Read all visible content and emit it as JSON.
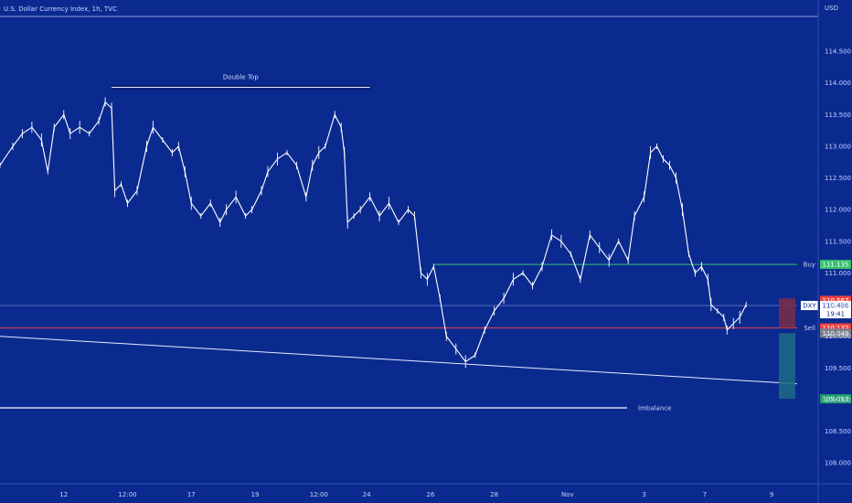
{
  "header": {
    "title": "U.S. Dollar Currency Index, 1h, TVC",
    "currency": "USD"
  },
  "colors": {
    "background": "#0b2a8f",
    "price": "#ffffff",
    "buy": "#38c172",
    "sell": "#ef4444",
    "trend": "#e6ecff",
    "projection_red": "#7c2d4a",
    "projection_green": "#1e6a86"
  },
  "chart_data": {
    "type": "line",
    "title": "U.S. Dollar Currency Index, 1h, TVC",
    "xlabel": "",
    "ylabel": "",
    "ylim": [
      107.7,
      115.05
    ],
    "yticks": [
      108.0,
      108.5,
      109.0,
      109.5,
      110.0,
      110.5,
      111.0,
      111.5,
      112.0,
      112.5,
      113.0,
      113.5,
      114.0,
      114.5
    ],
    "ytick_labels": [
      "108.000",
      "108.500",
      "109.000",
      "109.500",
      "110.000",
      "110.500",
      "111.000",
      "111.500",
      "112.000",
      "112.500",
      "113.000",
      "113.500",
      "114.000",
      "114.500"
    ],
    "xticks": [
      {
        "label": "12",
        "x": 1
      },
      {
        "label": "12:00",
        "x": 3
      },
      {
        "label": "17",
        "x": 5
      },
      {
        "label": "19",
        "x": 7
      },
      {
        "label": "12:00",
        "x": 9
      },
      {
        "label": "24",
        "x": 10.5
      },
      {
        "label": "26",
        "x": 12.5
      },
      {
        "label": "28",
        "x": 14.5
      },
      {
        "label": "Nov",
        "x": 16.8
      },
      {
        "label": "3",
        "x": 19.2
      },
      {
        "label": "7",
        "x": 21.1
      },
      {
        "label": "9",
        "x": 23.2
      }
    ],
    "x_range": [
      -1,
      24
    ],
    "series": [
      {
        "kind": "price",
        "points": [
          [
            -1,
            112.7
          ],
          [
            -0.6,
            113.0
          ],
          [
            -0.3,
            113.2
          ],
          [
            0,
            113.3
          ],
          [
            0.3,
            113.1
          ],
          [
            0.5,
            112.6
          ],
          [
            0.7,
            113.3
          ],
          [
            1.0,
            113.5
          ],
          [
            1.2,
            113.2
          ],
          [
            1.5,
            113.3
          ],
          [
            1.8,
            113.2
          ],
          [
            2.1,
            113.4
          ],
          [
            2.3,
            113.7
          ],
          [
            2.5,
            113.6
          ],
          [
            2.6,
            112.3
          ],
          [
            2.8,
            112.4
          ],
          [
            3.0,
            112.1
          ],
          [
            3.3,
            112.3
          ],
          [
            3.6,
            113.0
          ],
          [
            3.8,
            113.3
          ],
          [
            4.1,
            113.1
          ],
          [
            4.4,
            112.9
          ],
          [
            4.6,
            113.0
          ],
          [
            4.8,
            112.6
          ],
          [
            5.0,
            112.1
          ],
          [
            5.3,
            111.9
          ],
          [
            5.6,
            112.1
          ],
          [
            5.9,
            111.8
          ],
          [
            6.1,
            112.0
          ],
          [
            6.4,
            112.2
          ],
          [
            6.7,
            111.9
          ],
          [
            6.9,
            112.0
          ],
          [
            7.2,
            112.3
          ],
          [
            7.4,
            112.6
          ],
          [
            7.7,
            112.8
          ],
          [
            8.0,
            112.9
          ],
          [
            8.3,
            112.7
          ],
          [
            8.6,
            112.2
          ],
          [
            8.8,
            112.7
          ],
          [
            9.0,
            112.9
          ],
          [
            9.2,
            113.0
          ],
          [
            9.5,
            113.5
          ],
          [
            9.7,
            113.3
          ],
          [
            9.8,
            112.9
          ],
          [
            9.9,
            111.8
          ],
          [
            10.1,
            111.9
          ],
          [
            10.3,
            112.0
          ],
          [
            10.6,
            112.2
          ],
          [
            10.9,
            111.9
          ],
          [
            11.2,
            112.1
          ],
          [
            11.5,
            111.8
          ],
          [
            11.8,
            112.0
          ],
          [
            12.0,
            111.9
          ],
          [
            12.2,
            111.0
          ],
          [
            12.4,
            110.9
          ],
          [
            12.6,
            111.1
          ],
          [
            12.8,
            110.6
          ],
          [
            13.0,
            110.0
          ],
          [
            13.3,
            109.8
          ],
          [
            13.6,
            109.6
          ],
          [
            13.9,
            109.7
          ],
          [
            14.2,
            110.1
          ],
          [
            14.5,
            110.4
          ],
          [
            14.8,
            110.6
          ],
          [
            15.1,
            110.9
          ],
          [
            15.4,
            111.0
          ],
          [
            15.7,
            110.8
          ],
          [
            16.0,
            111.1
          ],
          [
            16.3,
            111.6
          ],
          [
            16.6,
            111.5
          ],
          [
            16.9,
            111.3
          ],
          [
            17.2,
            110.9
          ],
          [
            17.5,
            111.6
          ],
          [
            17.8,
            111.4
          ],
          [
            18.1,
            111.2
          ],
          [
            18.4,
            111.5
          ],
          [
            18.7,
            111.2
          ],
          [
            18.9,
            111.9
          ],
          [
            19.2,
            112.2
          ],
          [
            19.4,
            112.9
          ],
          [
            19.6,
            113.0
          ],
          [
            19.8,
            112.8
          ],
          [
            20.0,
            112.7
          ],
          [
            20.2,
            112.5
          ],
          [
            20.4,
            112.0
          ],
          [
            20.6,
            111.3
          ],
          [
            20.8,
            111.0
          ],
          [
            21.0,
            111.1
          ],
          [
            21.2,
            110.9
          ],
          [
            21.3,
            110.5
          ],
          [
            21.5,
            110.4
          ],
          [
            21.7,
            110.3
          ],
          [
            21.8,
            110.1
          ],
          [
            22.0,
            110.2
          ],
          [
            22.2,
            110.3
          ],
          [
            22.4,
            110.5
          ]
        ]
      }
    ],
    "levels": [
      {
        "name": "Buy",
        "value": 111.135,
        "label": "111.135"
      },
      {
        "name": "Sell",
        "value": 110.132,
        "label": "110.132"
      }
    ],
    "annotations": {
      "double_top": {
        "label": "Double Top",
        "value": 113.93,
        "x_start": 2.5,
        "x_end": 10.6
      },
      "imbalance": {
        "label": "Imbalance",
        "value": 108.87
      },
      "current_value": 110.486,
      "current_label": "110.486",
      "current_time": "19:41",
      "ticker": "DXY",
      "high_tag": "110.567",
      "low_tag": "110.049",
      "target_tag": "109.013",
      "target_value": 109.013
    },
    "grid": true,
    "legend": "none"
  }
}
